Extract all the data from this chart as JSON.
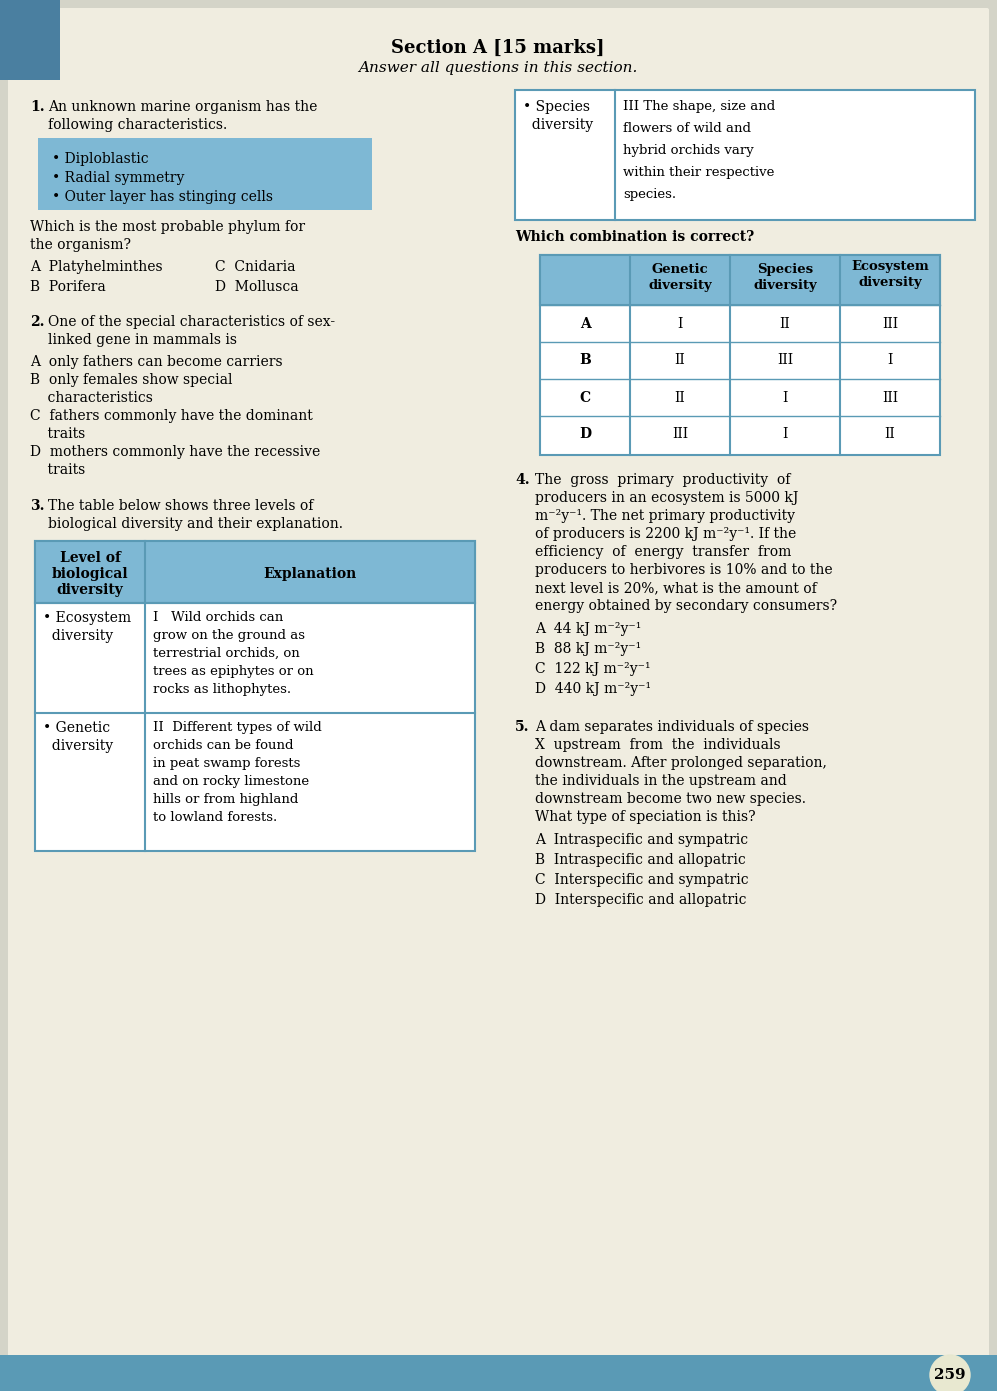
{
  "title": "Section A [15 marks]",
  "subtitle": "Answer all questions in this section.",
  "bg_color": "#e8e8e0",
  "page_bg": "#d4d4c8",
  "white_bg": "#f0ede0",
  "blue_highlight": "#7eb8d4",
  "table_border": "#5a9ab5",
  "q1": {
    "number": "1.",
    "text": "An unknown marine organism has the\nfollowing characteristics.",
    "bullets": [
      "Diploblastic",
      "Radial symmetry",
      "Outer layer has stinging cells"
    ],
    "question": "Which is the most probable phylum for\nthe organism?",
    "options": [
      [
        "A",
        "Platyhelminthes",
        "C",
        "Cnidaria"
      ],
      [
        "B",
        "Porifera",
        "D",
        "Mollusca"
      ]
    ]
  },
  "q2": {
    "number": "2.",
    "text": "One of the special characteristics of sex-\nlinked gene in mammals is",
    "options": [
      "A  only fathers can become carriers",
      "B  only females show special\n    characteristics",
      "C  fathers commonly have the dominant\n    traits",
      "D  mothers commonly have the recessive\n    traits"
    ]
  },
  "q3": {
    "number": "3.",
    "text": "The table below shows three levels of\nbiological diversity and their explanation.",
    "table": {
      "headers": [
        "Level of\nbiological\ndiversity",
        "Explanation"
      ],
      "rows": [
        [
          "• Ecosystem\n  diversity",
          "I   Wild orchids can\ngrow on the ground as\nterrestrial orchids, on\ntrees as epiphytes or on\nrocks as lithophytes."
        ],
        [
          "• Genetic\n  diversity",
          "II  Different types of wild\norchids can be found\nin peat swamp forests\nand on rocky limestone\nhills or from highland\nto lowland forests."
        ]
      ]
    }
  },
  "q3_right": {
    "table2": {
      "species_row": [
        "• Species\n  diversity",
        "III The shape, size and\nflowers of wild and\nhybrid orchids vary\nwithin their respective\nspecies."
      ]
    },
    "question": "Which combination is correct?",
    "combo_table": {
      "headers": [
        "Genetic\ndiversity",
        "Species\ndiversity",
        "Ecosystem\ndiversity"
      ],
      "rows": [
        [
          "A",
          "I",
          "II",
          "III"
        ],
        [
          "B",
          "II",
          "III",
          "I"
        ],
        [
          "C",
          "II",
          "I",
          "III"
        ],
        [
          "D",
          "III",
          "I",
          "II"
        ]
      ]
    }
  },
  "q4": {
    "number": "4.",
    "text": "The gross primary productivity of\nproducers in an ecosystem is 5000 kJ\nm⁻²y⁻¹. The net primary productivity\nof producers is 2200 kJ m⁻²y⁻¹. If the\nefficiency of energy transfer from\nproducers to herbivores is 10% and to the\nnext level is 20%, what is the amount of\nenergy obtained by secondary consumers?",
    "options": [
      "A  44 kJ m⁻²y⁻¹",
      "B  88 kJ m⁻²y⁻¹",
      "C  122 kJ m⁻²y⁻¹",
      "D  440 kJ m⁻²y⁻¹"
    ]
  },
  "q5": {
    "number": "5.",
    "text": "A dam separates individuals of species\nX  upstream  from  the  individuals\ndownstream. After prolonged separation,\nthe individuals in the upstream and\ndownstream become two new species.\nWhat type of speciation is this?",
    "options": [
      "A  Intraspecific and sympatric",
      "B  Intraspecific and allopatric",
      "C  Interspecific and sympatric",
      "D  Interspecific and allopatric"
    ]
  },
  "page_number": "259"
}
